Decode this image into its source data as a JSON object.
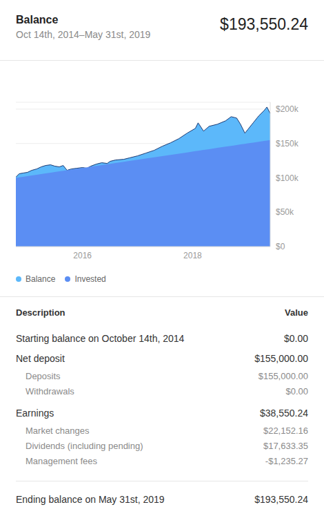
{
  "header": {
    "title": "Balance",
    "subtitle": "Oct 14th, 2014–May 31st, 2019",
    "value": "$193,550.24"
  },
  "chart_data": {
    "type": "area",
    "x": [
      2014.79,
      2014.85,
      2014.92,
      2015.0,
      2015.08,
      2015.17,
      2015.25,
      2015.33,
      2015.42,
      2015.5,
      2015.58,
      2015.65,
      2015.72,
      2015.8,
      2015.9,
      2016.0,
      2016.08,
      2016.15,
      2016.25,
      2016.35,
      2016.45,
      2016.5,
      2016.6,
      2016.75,
      2016.85,
      2017.0,
      2017.15,
      2017.3,
      2017.45,
      2017.6,
      2017.75,
      2017.9,
      2018.05,
      2018.1,
      2018.2,
      2018.3,
      2018.45,
      2018.6,
      2018.7,
      2018.8,
      2018.87,
      2018.95,
      2019.0,
      2019.1,
      2019.2,
      2019.3,
      2019.35,
      2019.41
    ],
    "series": [
      {
        "name": "Balance",
        "color": "#5cb8fa",
        "values": [
          101000,
          106000,
          107000,
          108000,
          111000,
          113000,
          116000,
          118000,
          119000,
          117000,
          116000,
          118000,
          111000,
          113000,
          114000,
          115000,
          114000,
          117000,
          120000,
          122000,
          121000,
          124000,
          126000,
          127000,
          129000,
          132000,
          136000,
          140000,
          146000,
          151000,
          157000,
          165000,
          172000,
          180000,
          168000,
          175000,
          178000,
          183000,
          189000,
          187000,
          178000,
          165000,
          170000,
          180000,
          190000,
          198000,
          203000,
          193550.24
        ]
      },
      {
        "name": "Invested",
        "color": "#5b8ef3",
        "values": [
          100000,
          100700,
          101500,
          102500,
          103500,
          104500,
          105500,
          106400,
          107500,
          108500,
          109400,
          110200,
          111100,
          112000,
          113200,
          114400,
          115400,
          116200,
          117400,
          118600,
          119800,
          120400,
          121500,
          123300,
          124500,
          126300,
          128100,
          129900,
          131700,
          133500,
          135200,
          137000,
          138800,
          139400,
          140600,
          141800,
          143600,
          145400,
          146500,
          147700,
          148600,
          149500,
          150100,
          151300,
          152500,
          153700,
          154300,
          155000
        ]
      }
    ],
    "xlim": [
      2014.79,
      2019.41
    ],
    "xticks": [
      2016,
      2018
    ],
    "ylim": [
      0,
      210000
    ],
    "yticks": [
      {
        "value": 0,
        "label": "$0"
      },
      {
        "value": 50000,
        "label": "$50k"
      },
      {
        "value": 100000,
        "label": "$100k"
      },
      {
        "value": 150000,
        "label": "$150k"
      },
      {
        "value": 200000,
        "label": "$200k"
      }
    ],
    "grid": true,
    "legend": "bottom left"
  },
  "table": {
    "columns": [
      "Description",
      "Value"
    ],
    "rows": [
      {
        "label": "Starting balance on October 14th, 2014",
        "value": "$0.00",
        "items": []
      },
      {
        "label": "Net deposit",
        "value": "$155,000.00",
        "items": [
          {
            "label": "Deposits",
            "value": "$155,000.00"
          },
          {
            "label": "Withdrawals",
            "value": "$0.00"
          }
        ]
      },
      {
        "label": "Earnings",
        "value": "$38,550.24",
        "items": [
          {
            "label": "Market changes",
            "value": "$22,152.16"
          },
          {
            "label": "Dividends (including pending)",
            "value": "$17,633.35"
          },
          {
            "label": "Management fees",
            "value": "-$1,235.27"
          }
        ]
      }
    ],
    "footer": {
      "label": "Ending balance on May 31st, 2019",
      "value": "$193,550.24"
    }
  }
}
